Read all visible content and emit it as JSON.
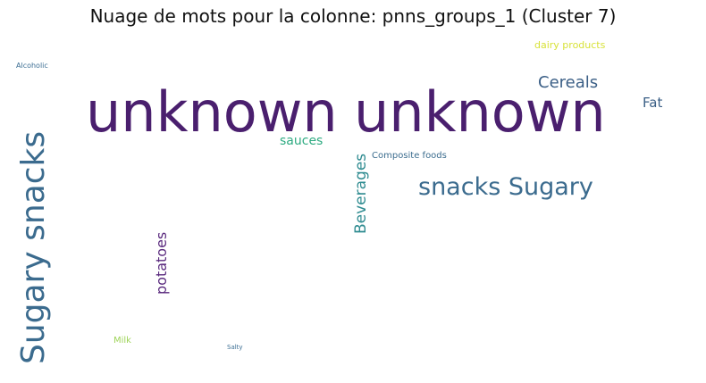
{
  "title": "Nuage de mots pour la colonne: pnns_groups_1 (Cluster 7)",
  "words": [
    {
      "text": "unknown",
      "color": "#4a1f6e"
    },
    {
      "text": "unknown",
      "color": "#4a1f6e"
    },
    {
      "text": "Sugary snacks",
      "color": "#3b6b8e"
    },
    {
      "text": "snacks Sugary",
      "color": "#3b6b8e"
    },
    {
      "text": "Cereals",
      "color": "#3b5f86"
    },
    {
      "text": "Fat",
      "color": "#3b5f86"
    },
    {
      "text": "dairy products",
      "color": "#d8e23a"
    },
    {
      "text": "Alcoholic",
      "color": "#3d6f94"
    },
    {
      "text": "sauces",
      "color": "#2fab82"
    },
    {
      "text": "Beverages",
      "color": "#2e8b90"
    },
    {
      "text": "Composite foods",
      "color": "#3b6c8e"
    },
    {
      "text": "potatoes",
      "color": "#5a2a7e"
    },
    {
      "text": "Milk",
      "color": "#9fd45a"
    },
    {
      "text": "Salty",
      "color": "#3d6f94"
    }
  ]
}
